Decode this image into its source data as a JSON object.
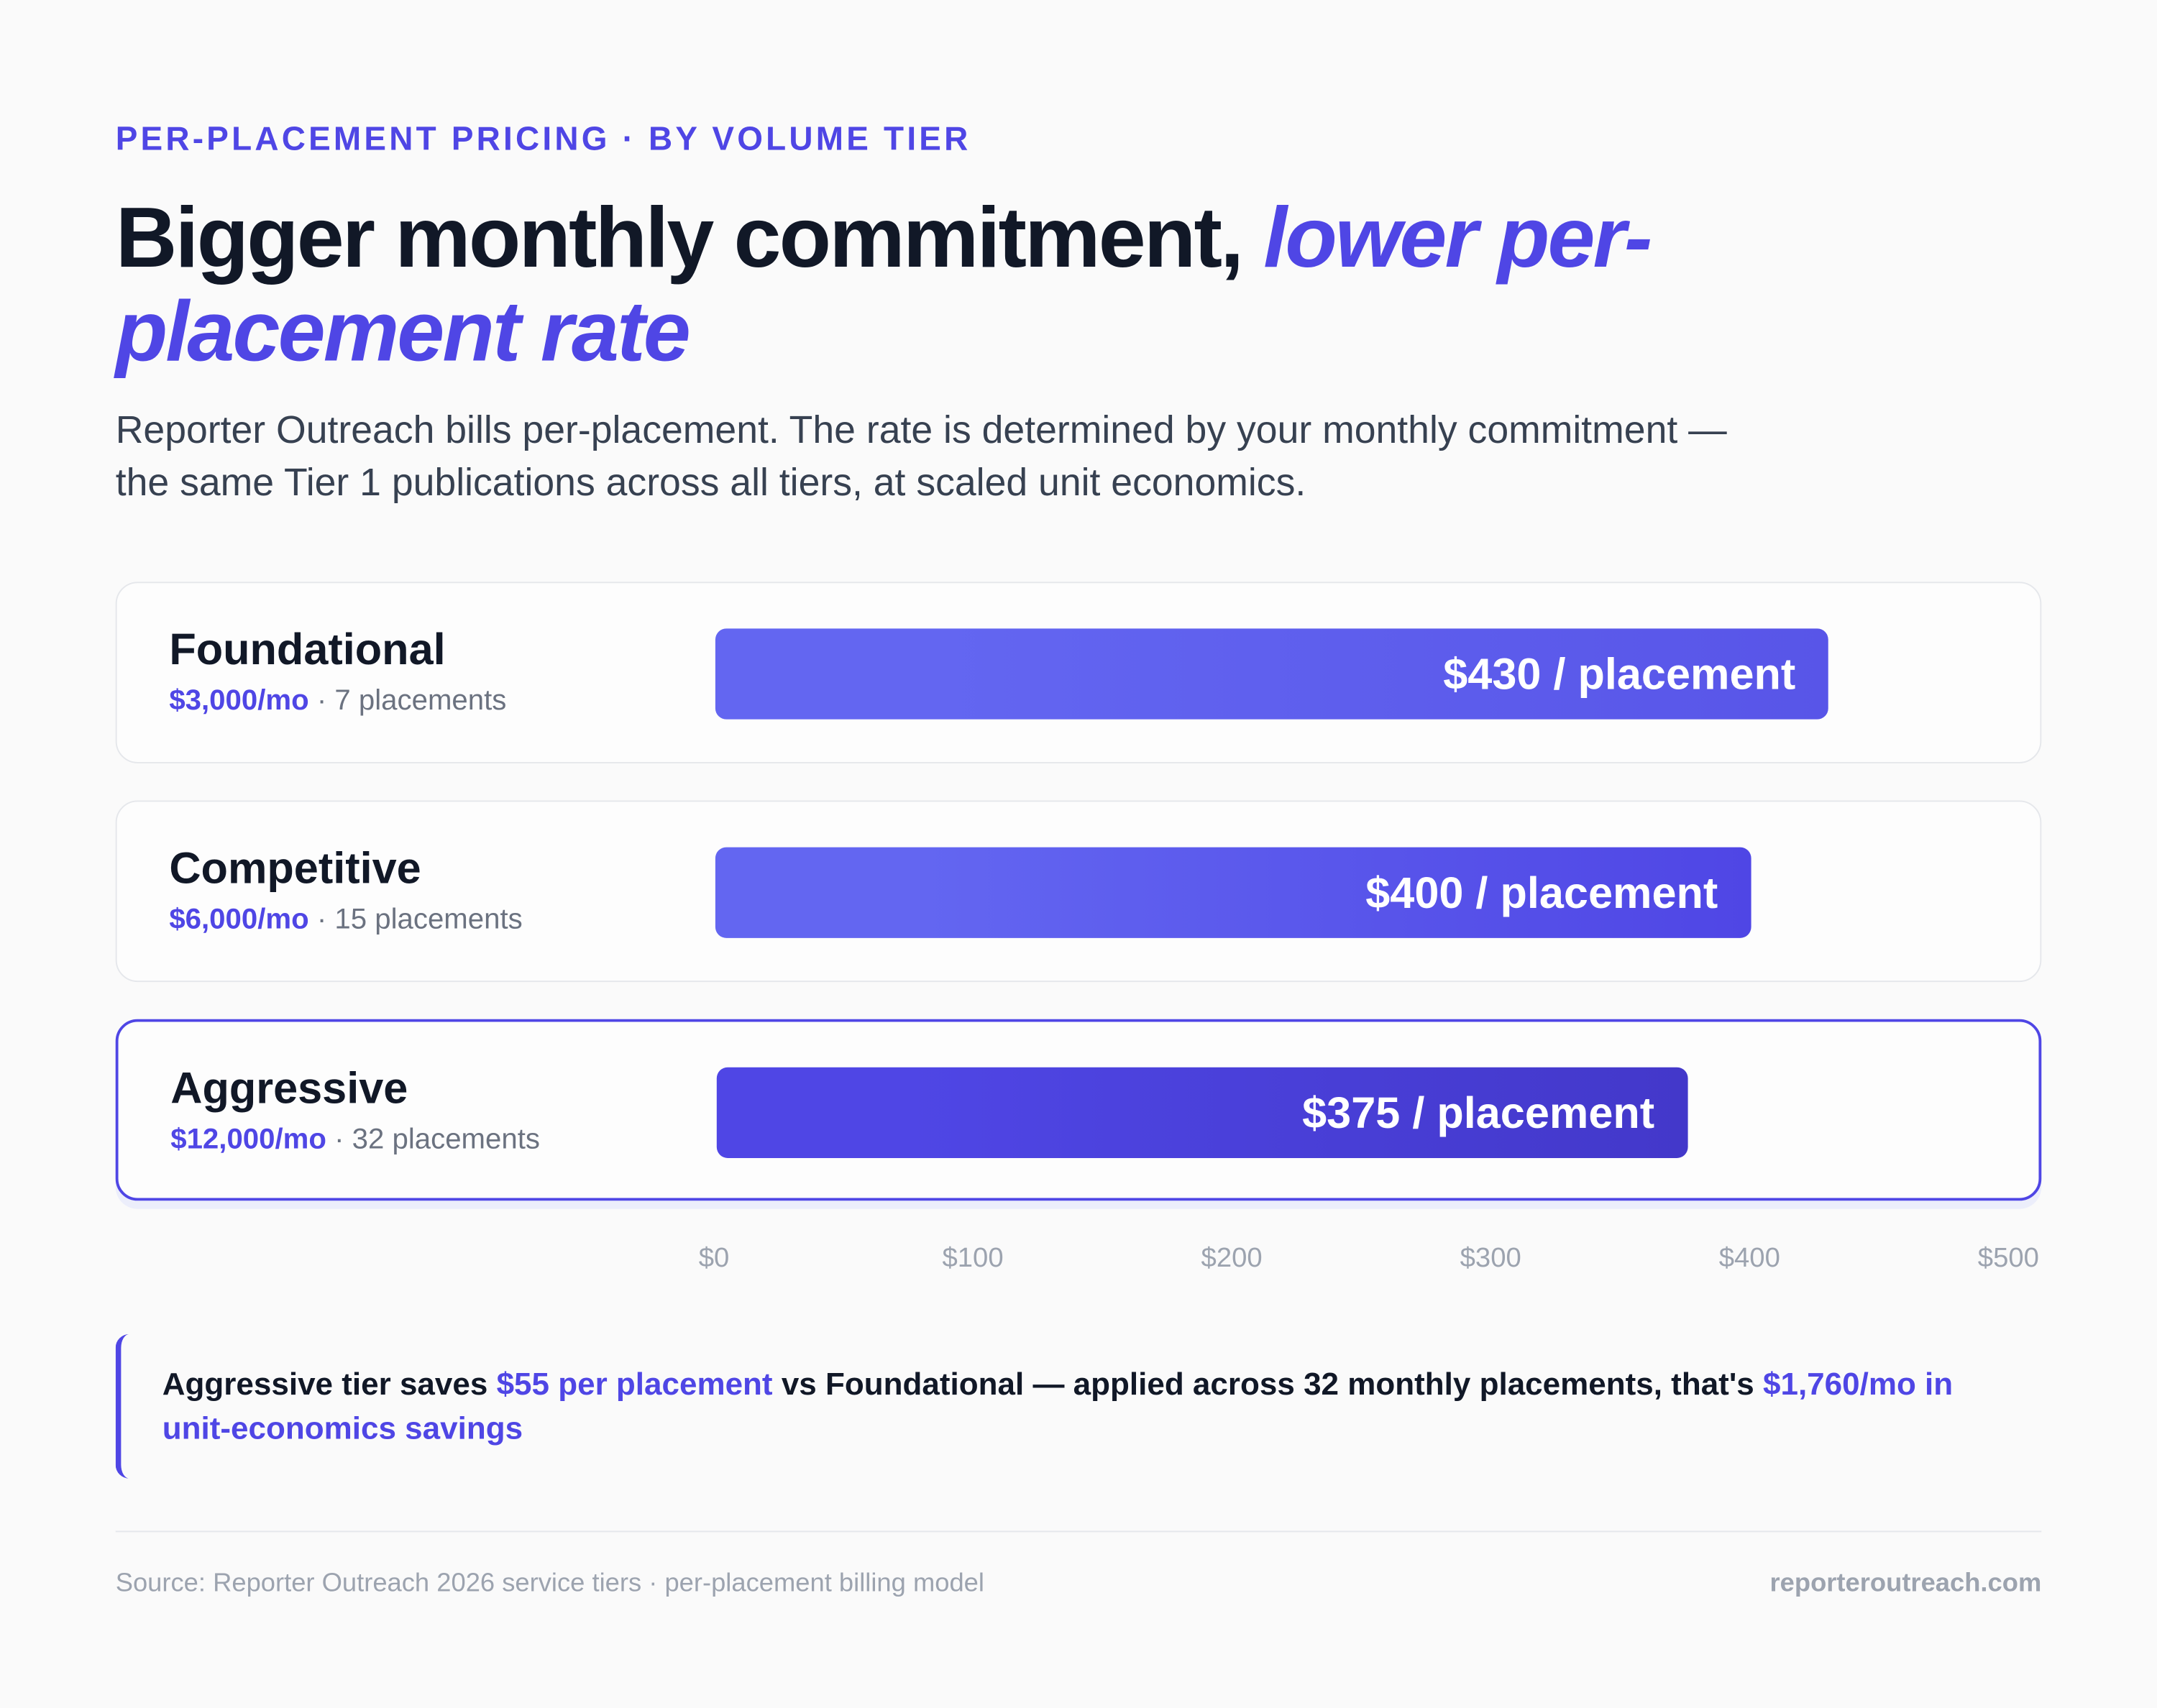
{
  "eyebrow": "PER-PLACEMENT PRICING · BY VOLUME TIER",
  "title": {
    "text": "Bigger monthly commitment,",
    "highlight": "lower per-placement rate"
  },
  "description": "Reporter Outreach bills per-placement. The rate is determined by your monthly commitment — the same Tier 1 publications across all tiers, at scaled unit economics.",
  "chart_data": {
    "type": "bar",
    "orientation": "horizontal",
    "categories": [
      "Foundational",
      "Competitive",
      "Aggressive"
    ],
    "monthly": [
      "$3,000/mo",
      "$6,000/mo",
      "$12,000/mo"
    ],
    "placements": [
      "· 7 placements",
      "· 15 placements",
      "· 32 placements"
    ],
    "values": [
      430,
      400,
      375
    ],
    "value_labels": [
      "$430 / placement",
      "$400 / placement",
      "$375 / placement"
    ],
    "colors": [
      [
        "#6366f1",
        "#5855e8"
      ],
      [
        "#6366f1",
        "#4f46e5"
      ],
      [
        "#4f46e5",
        "#4338ca"
      ]
    ],
    "highlighted_category": "Aggressive",
    "xlim": [
      0,
      500
    ],
    "xticks": [
      {
        "value": 0,
        "label": "$0"
      },
      {
        "value": 100,
        "label": "$100"
      },
      {
        "value": 200,
        "label": "$200"
      },
      {
        "value": 300,
        "label": "$300"
      },
      {
        "value": 400,
        "label": "$400"
      },
      {
        "value": 500,
        "label": "$500"
      }
    ]
  },
  "callout": {
    "text_1": "Aggressive tier saves ",
    "highlight_1": "$55 per placement",
    "text_2": " vs Foundational — applied across 32 monthly placements, that's ",
    "highlight_2": "$1,760/mo in unit-economics savings"
  },
  "footer": {
    "source": "Source: Reporter Outreach 2026 service tiers · per-placement billing model",
    "site": "reporteroutreach.com"
  }
}
